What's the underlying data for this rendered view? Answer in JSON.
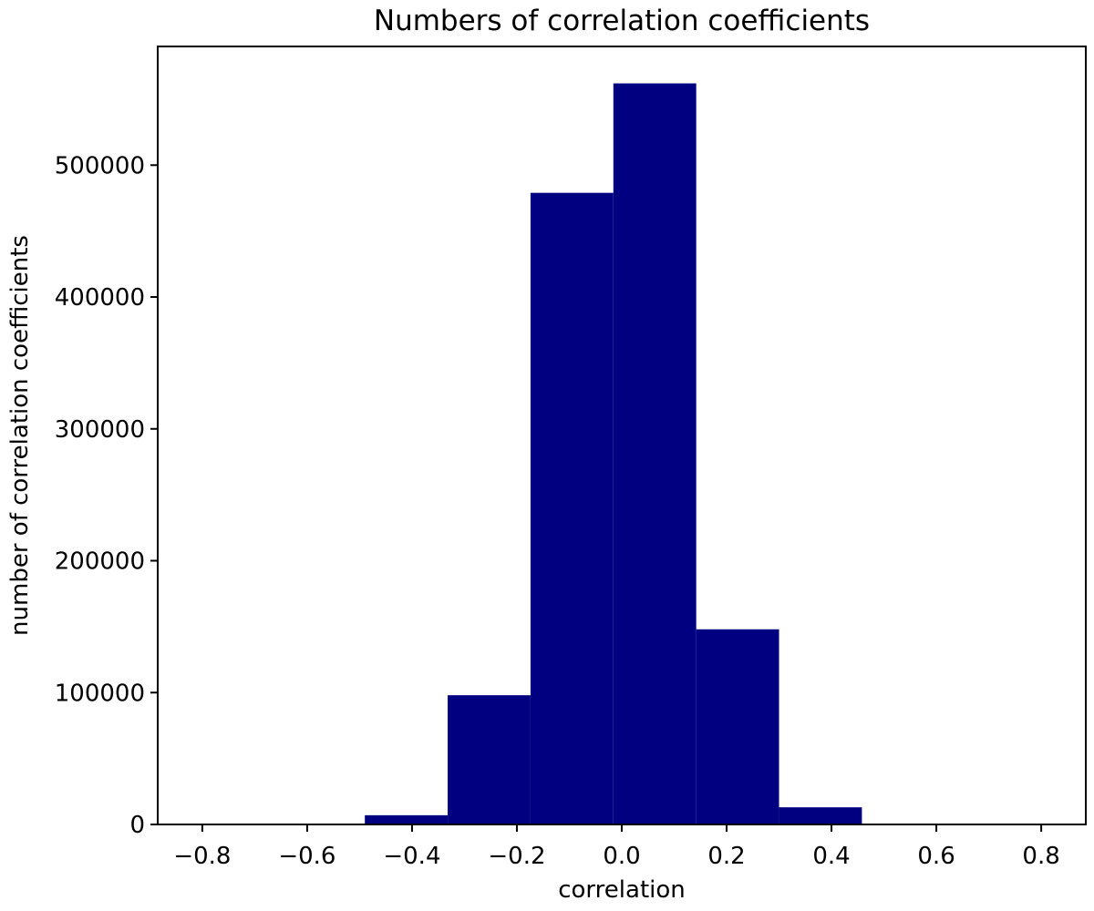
{
  "chart_data": {
    "type": "bar",
    "title": "Numbers of correlation coefficients",
    "xlabel": "correlation",
    "ylabel": "number of correlation coefficients",
    "xlim": [
      -0.885,
      0.885
    ],
    "ylim": [
      0,
      590000
    ],
    "xticks": [
      -0.8,
      -0.6,
      -0.4,
      -0.2,
      0.0,
      0.2,
      0.4,
      0.6,
      0.8
    ],
    "xtick_labels": [
      "−0.8",
      "−0.6",
      "−0.4",
      "−0.2",
      "0.0",
      "0.2",
      "0.4",
      "0.6",
      "0.8"
    ],
    "yticks": [
      0,
      100000,
      200000,
      300000,
      400000,
      500000
    ],
    "ytick_labels": [
      "0",
      "100000",
      "200000",
      "300000",
      "400000",
      "500000"
    ],
    "bin_edges": [
      -0.49,
      -0.332,
      -0.174,
      -0.016,
      0.142,
      0.3,
      0.458
    ],
    "values": [
      7000,
      98000,
      479000,
      562000,
      148000,
      13000
    ],
    "bar_color": "#000080",
    "grid": false,
    "legend": false
  }
}
